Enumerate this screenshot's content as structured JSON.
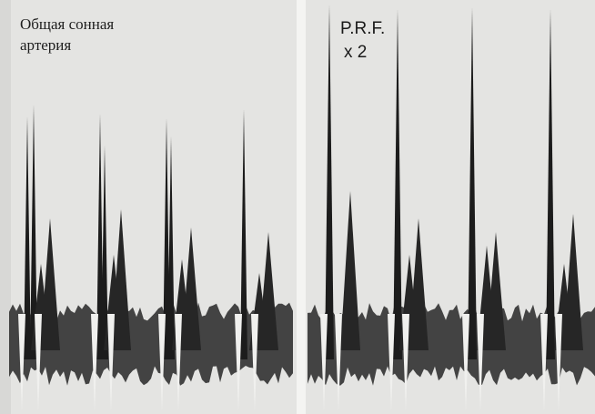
{
  "caption": {
    "line1": "Общая сонная",
    "line2": "артерия"
  },
  "setting": {
    "line1": "P.R.F.",
    "line2": "x 2"
  }
}
